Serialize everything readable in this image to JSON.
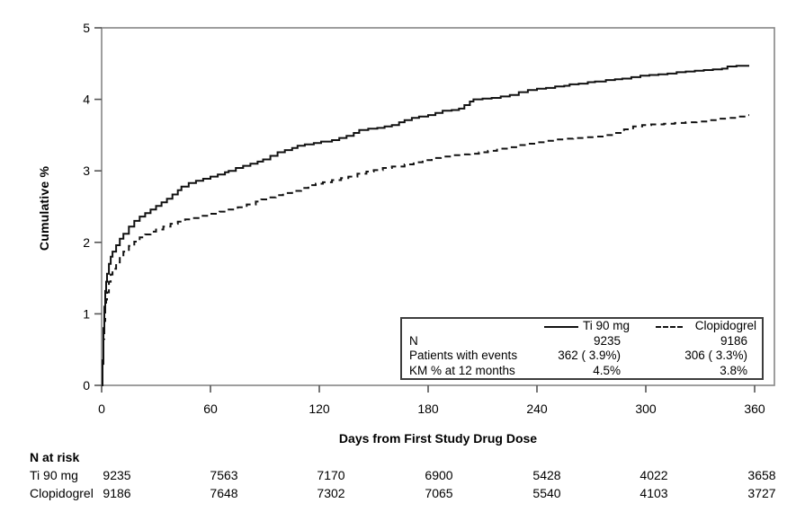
{
  "figure_title": "",
  "accent_colors": {
    "curve": "#111111",
    "frame": "#868686",
    "tick": "#555555",
    "text": "#000000"
  },
  "chart_data": {
    "type": "line",
    "subtype": "kaplan-meier-step",
    "title": "",
    "xlabel": "Days from First Study Drug Dose",
    "ylabel": "Cumulative %",
    "xlim": [
      0,
      371
    ],
    "ylim": [
      0,
      5
    ],
    "x_ticks": [
      0,
      60,
      120,
      180,
      240,
      300,
      360
    ],
    "y_ticks": [
      0,
      1,
      2,
      3,
      4,
      5
    ],
    "grid": false,
    "legend_position": "inside-bottom-right",
    "series": [
      {
        "name": "Ti 90 mg",
        "style": "solid",
        "points": [
          [
            0,
            0
          ],
          [
            0.5,
            0.35
          ],
          [
            1,
            0.8
          ],
          [
            1.5,
            1.1
          ],
          [
            2,
            1.32
          ],
          [
            2.5,
            1.45
          ],
          [
            3,
            1.56
          ],
          [
            4,
            1.7
          ],
          [
            5,
            1.8
          ],
          [
            6,
            1.87
          ],
          [
            8,
            1.96
          ],
          [
            10,
            2.05
          ],
          [
            12,
            2.12
          ],
          [
            15,
            2.22
          ],
          [
            18,
            2.3
          ],
          [
            21,
            2.36
          ],
          [
            24,
            2.41
          ],
          [
            27,
            2.46
          ],
          [
            30,
            2.51
          ],
          [
            33,
            2.56
          ],
          [
            36,
            2.61
          ],
          [
            39,
            2.67
          ],
          [
            42,
            2.73
          ],
          [
            44,
            2.78
          ],
          [
            48,
            2.83
          ],
          [
            52,
            2.86
          ],
          [
            56,
            2.89
          ],
          [
            60,
            2.92
          ],
          [
            64,
            2.95
          ],
          [
            68,
            2.98
          ],
          [
            70,
            3.0
          ],
          [
            74,
            3.04
          ],
          [
            78,
            3.07
          ],
          [
            82,
            3.1
          ],
          [
            86,
            3.13
          ],
          [
            89,
            3.16
          ],
          [
            93,
            3.21
          ],
          [
            97,
            3.26
          ],
          [
            101,
            3.29
          ],
          [
            105,
            3.32
          ],
          [
            108,
            3.35
          ],
          [
            112,
            3.37
          ],
          [
            117,
            3.39
          ],
          [
            121,
            3.41
          ],
          [
            127,
            3.43
          ],
          [
            131,
            3.46
          ],
          [
            135,
            3.49
          ],
          [
            139,
            3.53
          ],
          [
            142,
            3.57
          ],
          [
            147,
            3.59
          ],
          [
            152,
            3.6
          ],
          [
            156,
            3.62
          ],
          [
            160,
            3.64
          ],
          [
            164,
            3.68
          ],
          [
            167,
            3.71
          ],
          [
            171,
            3.74
          ],
          [
            175,
            3.76
          ],
          [
            180,
            3.78
          ],
          [
            184,
            3.81
          ],
          [
            188,
            3.84
          ],
          [
            193,
            3.85
          ],
          [
            197,
            3.87
          ],
          [
            200,
            3.92
          ],
          [
            203,
            3.97
          ],
          [
            205,
            4.0
          ],
          [
            210,
            4.01
          ],
          [
            215,
            4.02
          ],
          [
            220,
            4.04
          ],
          [
            225,
            4.06
          ],
          [
            230,
            4.1
          ],
          [
            235,
            4.13
          ],
          [
            240,
            4.15
          ],
          [
            245,
            4.16
          ],
          [
            250,
            4.18
          ],
          [
            255,
            4.19
          ],
          [
            258,
            4.21
          ],
          [
            263,
            4.22
          ],
          [
            268,
            4.24
          ],
          [
            272,
            4.25
          ],
          [
            278,
            4.27
          ],
          [
            283,
            4.28
          ],
          [
            287,
            4.29
          ],
          [
            292,
            4.31
          ],
          [
            297,
            4.33
          ],
          [
            302,
            4.34
          ],
          [
            307,
            4.35
          ],
          [
            312,
            4.36
          ],
          [
            317,
            4.38
          ],
          [
            322,
            4.39
          ],
          [
            327,
            4.4
          ],
          [
            332,
            4.41
          ],
          [
            337,
            4.42
          ],
          [
            342,
            4.43
          ],
          [
            345,
            4.46
          ],
          [
            350,
            4.47
          ],
          [
            357,
            4.47
          ]
        ]
      },
      {
        "name": "Clopidogrel",
        "style": "dashed",
        "points": [
          [
            0,
            0
          ],
          [
            0.5,
            0.3
          ],
          [
            1,
            0.65
          ],
          [
            1.5,
            0.9
          ],
          [
            2,
            1.08
          ],
          [
            2.5,
            1.2
          ],
          [
            3,
            1.3
          ],
          [
            4,
            1.45
          ],
          [
            5,
            1.55
          ],
          [
            6,
            1.63
          ],
          [
            8,
            1.72
          ],
          [
            10,
            1.8
          ],
          [
            12,
            1.87
          ],
          [
            15,
            1.95
          ],
          [
            18,
            2.01
          ],
          [
            21,
            2.07
          ],
          [
            24,
            2.11
          ],
          [
            27,
            2.15
          ],
          [
            30,
            2.18
          ],
          [
            34,
            2.22
          ],
          [
            38,
            2.26
          ],
          [
            42,
            2.29
          ],
          [
            46,
            2.32
          ],
          [
            50,
            2.34
          ],
          [
            55,
            2.37
          ],
          [
            60,
            2.4
          ],
          [
            65,
            2.43
          ],
          [
            70,
            2.46
          ],
          [
            75,
            2.49
          ],
          [
            80,
            2.53
          ],
          [
            85,
            2.57
          ],
          [
            88,
            2.6
          ],
          [
            92,
            2.63
          ],
          [
            96,
            2.66
          ],
          [
            100,
            2.69
          ],
          [
            105,
            2.72
          ],
          [
            110,
            2.76
          ],
          [
            114,
            2.8
          ],
          [
            118,
            2.82
          ],
          [
            122,
            2.84
          ],
          [
            127,
            2.87
          ],
          [
            132,
            2.9
          ],
          [
            136,
            2.92
          ],
          [
            141,
            2.96
          ],
          [
            146,
            2.99
          ],
          [
            150,
            3.01
          ],
          [
            155,
            3.04
          ],
          [
            160,
            3.06
          ],
          [
            167,
            3.09
          ],
          [
            172,
            3.12
          ],
          [
            177,
            3.15
          ],
          [
            182,
            3.18
          ],
          [
            187,
            3.2
          ],
          [
            193,
            3.22
          ],
          [
            198,
            3.23
          ],
          [
            203,
            3.24
          ],
          [
            208,
            3.26
          ],
          [
            213,
            3.28
          ],
          [
            218,
            3.31
          ],
          [
            224,
            3.33
          ],
          [
            230,
            3.36
          ],
          [
            235,
            3.38
          ],
          [
            240,
            3.4
          ],
          [
            245,
            3.42
          ],
          [
            250,
            3.44
          ],
          [
            255,
            3.45
          ],
          [
            260,
            3.46
          ],
          [
            266,
            3.47
          ],
          [
            272,
            3.48
          ],
          [
            278,
            3.5
          ],
          [
            283,
            3.53
          ],
          [
            288,
            3.58
          ],
          [
            293,
            3.62
          ],
          [
            298,
            3.64
          ],
          [
            303,
            3.65
          ],
          [
            310,
            3.66
          ],
          [
            316,
            3.67
          ],
          [
            322,
            3.68
          ],
          [
            328,
            3.69
          ],
          [
            334,
            3.71
          ],
          [
            340,
            3.73
          ],
          [
            345,
            3.74
          ],
          [
            350,
            3.76
          ],
          [
            355,
            3.78
          ],
          [
            357,
            3.78
          ]
        ]
      }
    ]
  },
  "axes": {
    "y_label": "Cumulative %",
    "x_label": "Days from First Study Drug Dose",
    "y_tick_labels": [
      "0",
      "1",
      "2",
      "3",
      "4",
      "5"
    ],
    "x_tick_labels": [
      "0",
      "60",
      "120",
      "180",
      "240",
      "300",
      "360"
    ]
  },
  "legend": {
    "header": [
      {
        "name": "Ti 90 mg",
        "line_style": "solid"
      },
      {
        "name": "Clopidogrel",
        "line_style": "dashed"
      }
    ],
    "rows": [
      {
        "label": "N",
        "ti": "9235",
        "clo": "9186"
      },
      {
        "label": "Patients with events",
        "ti": "362 ( 3.9%)",
        "clo": "306 ( 3.3%)"
      },
      {
        "label": "KM % at 12 months",
        "ti": "4.5%",
        "clo": "3.8%"
      }
    ]
  },
  "at_risk": {
    "title": "N at risk",
    "time_points": [
      0,
      60,
      120,
      180,
      240,
      300,
      360
    ],
    "rows": [
      {
        "label": "Ti 90 mg",
        "values": [
          "9235",
          "7563",
          "7170",
          "6900",
          "5428",
          "4022",
          "3658"
        ]
      },
      {
        "label": "Clopidogrel",
        "values": [
          "9186",
          "7648",
          "7302",
          "7065",
          "5540",
          "4103",
          "3727"
        ]
      }
    ]
  }
}
